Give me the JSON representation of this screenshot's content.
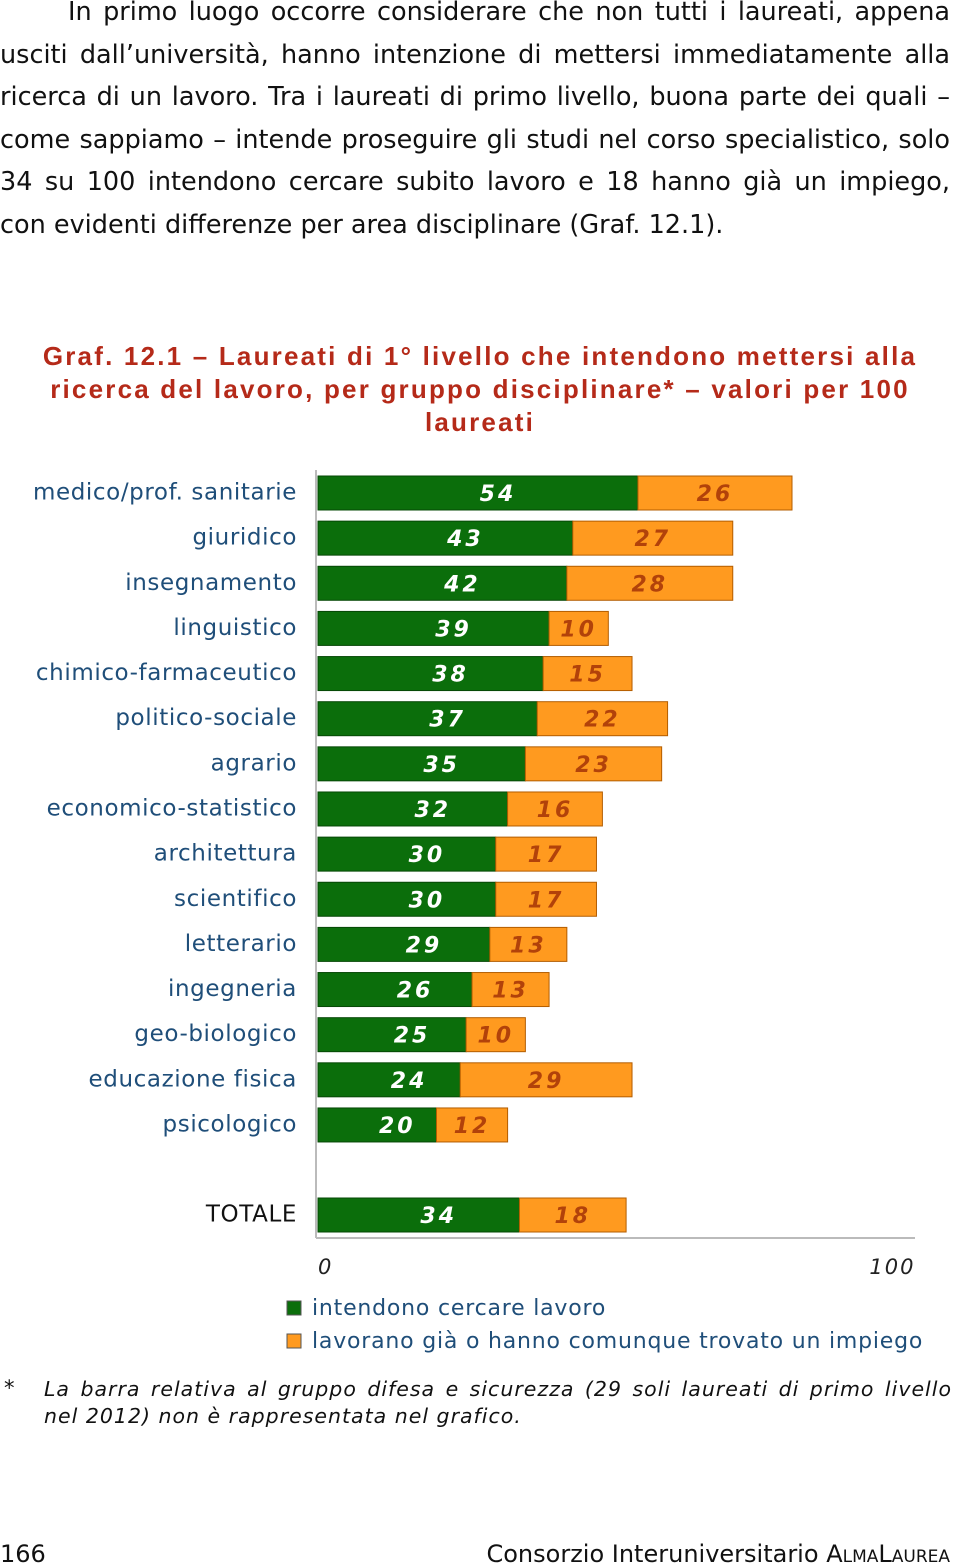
{
  "body": {
    "paragraph": "In primo luogo occorre considerare che non tutti i laureati, appena usciti dall’università, hanno intenzione di mettersi immediatamente alla ricerca di un lavoro. Tra i laureati di primo livello, buona parte dei quali – come sappiamo – intende proseguire gli studi nel corso specialistico, solo 34 su 100 intendono cercare subito lavoro e 18 hanno già un impiego, con evidenti differenze per area disciplinare (Graf. 12.1)."
  },
  "chart_data": {
    "type": "bar",
    "orientation": "horizontal",
    "stacked": true,
    "title": "Graf. 12.1 – Laureati di 1° livello che intendono mettersi alla ricerca del lavoro, per gruppo disciplinare* – valori per 100 laureati",
    "categories": [
      "medico/prof. sanitarie",
      "giuridico",
      "insegnamento",
      "linguistico",
      "chimico-farmaceutico",
      "politico-sociale",
      "agrario",
      "economico-statistico",
      "architettura",
      "scientifico",
      "letterario",
      "ingegneria",
      "geo-biologico",
      "educazione fisica",
      "psicologico",
      "TOTALE"
    ],
    "series": [
      {
        "name": "intendono cercare lavoro",
        "color": "#0b6e0b",
        "values": [
          54,
          43,
          42,
          39,
          38,
          37,
          35,
          32,
          30,
          30,
          29,
          26,
          25,
          24,
          20,
          34
        ]
      },
      {
        "name": "lavorano già o hanno comunque trovato un impiego",
        "color": "#ff9a1f",
        "values": [
          26,
          27,
          28,
          10,
          15,
          22,
          23,
          16,
          17,
          17,
          13,
          13,
          10,
          29,
          12,
          18
        ]
      }
    ],
    "xlim": [
      0,
      100
    ],
    "xticks": [
      0,
      100
    ],
    "legend": "bottom"
  },
  "footnote": {
    "marker": "*",
    "text": "La barra relativa al gruppo difesa e sicurezza (29 soli laureati di primo livello nel 2012) non è rappresentata nel grafico."
  },
  "footer": {
    "page": "166",
    "publisher": "Consorzio Interuniversitario",
    "brand": "AlmaLaurea"
  }
}
